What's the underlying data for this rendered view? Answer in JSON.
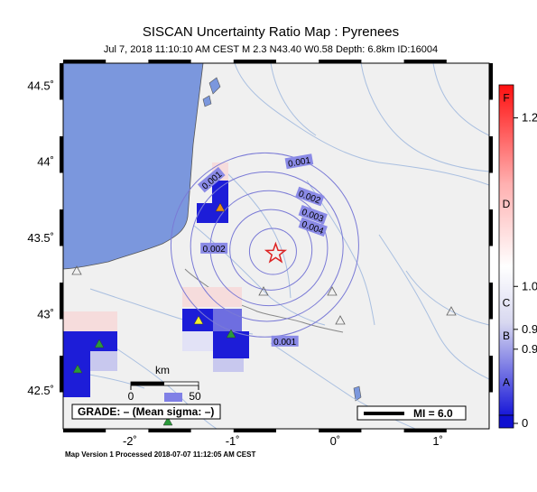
{
  "title": "SISCAN Uncertainty Ratio Map : Pyrenees",
  "subtitle": "Jul  7, 2018 11:10:10 AM CEST   M 2.3   N43.40 W0.58   Depth: 6.8km   ID:16004",
  "footer": "Map Version 1 Processed 2018-07-07 11:12:05 AM CEST",
  "map": {
    "lon_range": [
      -2.65,
      1.5
    ],
    "lat_range": [
      42.25,
      44.65
    ],
    "lat_ticks": [
      {
        "value": 44.5,
        "label": "44.5˚"
      },
      {
        "value": 44.0,
        "label": "44˚"
      },
      {
        "value": 43.5,
        "label": "43.5˚"
      },
      {
        "value": 43.0,
        "label": "43˚"
      },
      {
        "value": 42.5,
        "label": "42.5˚"
      }
    ],
    "lon_ticks": [
      {
        "value": -2,
        "label": "-2˚"
      },
      {
        "value": -1,
        "label": "-1˚"
      },
      {
        "value": 0,
        "label": "0˚"
      },
      {
        "value": 1,
        "label": "1˚"
      }
    ],
    "colors": {
      "land": "#f0f0f0",
      "ocean": "#7b97dd",
      "river": "#a9bfe0",
      "contour": "#7a7ad6",
      "epicenter": "#dd2222"
    },
    "epicenter": {
      "lat": 43.4,
      "lon": -0.58,
      "icon": "star-icon"
    },
    "contour_labels": [
      {
        "text": "0.001",
        "lon": -0.35,
        "lat": 44.0
      },
      {
        "text": "0.001",
        "lon": -1.2,
        "lat": 43.88
      },
      {
        "text": "0.002",
        "lon": -0.25,
        "lat": 43.77
      },
      {
        "text": "0.003",
        "lon": -0.22,
        "lat": 43.65
      },
      {
        "text": "0.004",
        "lon": -0.22,
        "lat": 43.57
      },
      {
        "text": "0.002",
        "lon": -1.18,
        "lat": 43.43
      },
      {
        "text": "0.001",
        "lon": -0.49,
        "lat": 42.82
      }
    ],
    "contour_rings_km": [
      20,
      35,
      50,
      65,
      80
    ]
  },
  "scale_bar": {
    "unit": "km",
    "labels": [
      "0",
      "50"
    ]
  },
  "grade_box": "GRADE: – (Mean sigma: –)",
  "mi_legend": "MI = 6.0",
  "colorbar": {
    "letters": [
      {
        "text": "F",
        "value": 1.28
      },
      {
        "text": "D",
        "value": 1.12
      },
      {
        "text": "C",
        "value": 0.97
      },
      {
        "text": "B",
        "value": 0.92
      },
      {
        "text": "A",
        "value": 0.85
      }
    ],
    "values": [
      {
        "text": "1.2",
        "value": 1.25
      },
      {
        "text": "1.0",
        "value": 0.995
      },
      {
        "text": "0.9",
        "value": 0.93
      },
      {
        "text": "0.9",
        "value": 0.9
      },
      {
        "text": "0",
        "value": 0.8
      }
    ],
    "min": 0.8,
    "max": 1.3
  }
}
